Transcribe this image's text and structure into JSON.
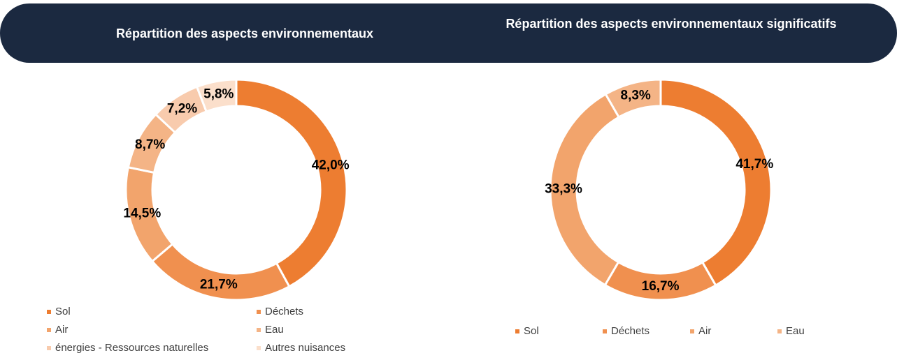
{
  "chart_data": [
    {
      "type": "donut",
      "title": "Répartition des aspects environnementaux",
      "categories": [
        "Sol",
        "Déchets",
        "Air",
        "Eau",
        "énergies - Ressources naturelles",
        "Autres nuisances"
      ],
      "values": [
        42.0,
        21.7,
        14.5,
        8.7,
        7.2,
        5.8
      ],
      "value_labels": [
        "42,0%",
        "21,7%",
        "14,5%",
        "8,7%",
        "7,2%",
        "5,8%"
      ],
      "colors": [
        "#ed7d31",
        "#f0904f",
        "#f2a46c",
        "#f4b486",
        "#f8cbad",
        "#fbdfcb"
      ]
    },
    {
      "type": "donut",
      "title": "Répartition des aspects environnementaux significatifs",
      "categories": [
        "Sol",
        "Déchets",
        "Air",
        "Eau"
      ],
      "values": [
        41.7,
        16.7,
        33.3,
        8.3
      ],
      "value_labels": [
        "41,7%",
        "16,7%",
        "33,3%",
        "8,3%"
      ],
      "colors": [
        "#ed7d31",
        "#f0904f",
        "#f2a46c",
        "#f4b486"
      ]
    }
  ]
}
